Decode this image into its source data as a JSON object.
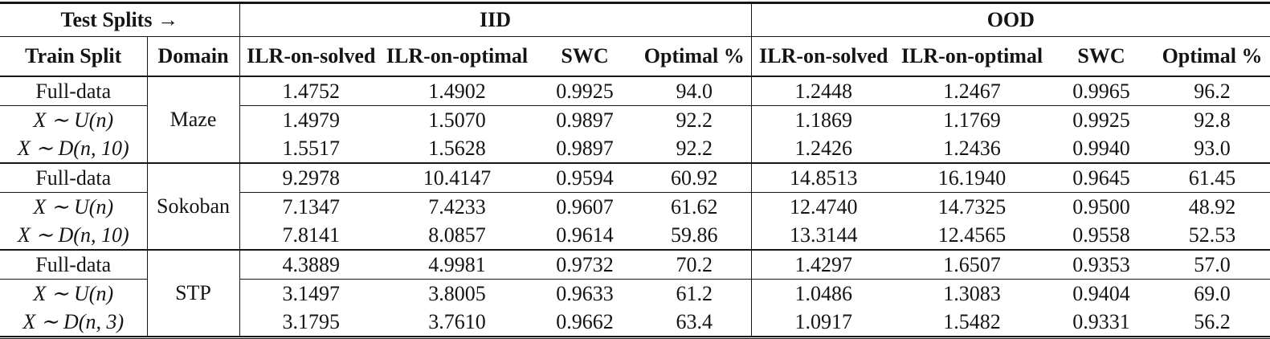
{
  "header": {
    "test_splits": "Test Splits →",
    "iid": "IID",
    "ood": "OOD",
    "train_split": "Train Split",
    "domain": "Domain",
    "metrics": [
      "ILR-on-solved",
      "ILR-on-optimal",
      "SWC",
      "Optimal %"
    ]
  },
  "blocks": [
    {
      "domain": "Maze",
      "rows": [
        {
          "train_split": "Full-data",
          "math": false,
          "iid": [
            "1.4752",
            "1.4902",
            "0.9925",
            "94.0"
          ],
          "iid_bold": [
            false,
            false,
            false,
            false
          ],
          "ood": [
            "1.2448",
            "1.2467",
            "0.9965",
            "96.2"
          ],
          "ood_bold": [
            false,
            false,
            false,
            false
          ]
        },
        {
          "train_split": "X ∼ U(n)",
          "math": true,
          "iid": [
            "1.4979",
            "1.5070",
            "0.9897",
            "92.2"
          ],
          "iid_bold": [
            false,
            false,
            true,
            true
          ],
          "ood": [
            "1.1869",
            "1.1769",
            "0.9925",
            "92.8"
          ],
          "ood_bold": [
            false,
            false,
            false,
            false
          ]
        },
        {
          "train_split": "X ∼ D(n, 10)",
          "math": true,
          "iid": [
            "1.5517",
            "1.5628",
            "0.9897",
            "92.2"
          ],
          "iid_bold": [
            true,
            true,
            true,
            true
          ],
          "ood": [
            "1.2426",
            "1.2436",
            "0.9940",
            "93.0"
          ],
          "ood_bold": [
            true,
            true,
            true,
            true
          ]
        }
      ]
    },
    {
      "domain": "Sokoban",
      "rows": [
        {
          "train_split": "Full-data",
          "math": false,
          "iid": [
            "9.2978",
            "10.4147",
            "0.9594",
            "60.92"
          ],
          "iid_bold": [
            false,
            false,
            false,
            false
          ],
          "ood": [
            "14.8513",
            "16.1940",
            "0.9645",
            "61.45"
          ],
          "ood_bold": [
            false,
            false,
            false,
            false
          ]
        },
        {
          "train_split": "X ∼ U(n)",
          "math": true,
          "iid": [
            "7.1347",
            "7.4233",
            "0.9607",
            "61.62"
          ],
          "iid_bold": [
            false,
            false,
            false,
            true
          ],
          "ood": [
            "12.4740",
            "14.7325",
            "0.9500",
            "48.92"
          ],
          "ood_bold": [
            false,
            true,
            false,
            false
          ]
        },
        {
          "train_split": "X ∼ D(n, 10)",
          "math": true,
          "iid": [
            "7.8141",
            "8.0857",
            "0.9614",
            "59.86"
          ],
          "iid_bold": [
            true,
            true,
            true,
            false
          ],
          "ood": [
            "13.3144",
            "12.4565",
            "0.9558",
            "52.53"
          ],
          "ood_bold": [
            true,
            false,
            true,
            true
          ]
        }
      ]
    },
    {
      "domain": "STP",
      "rows": [
        {
          "train_split": "Full-data",
          "math": false,
          "iid": [
            "4.3889",
            "4.9981",
            "0.9732",
            "70.2"
          ],
          "iid_bold": [
            false,
            false,
            false,
            false
          ],
          "ood": [
            "1.4297",
            "1.6507",
            "0.9353",
            "57.0"
          ],
          "ood_bold": [
            false,
            false,
            false,
            false
          ]
        },
        {
          "train_split": "X ∼ U(n)",
          "math": true,
          "iid": [
            "3.1497",
            "3.8005",
            "0.9633",
            "61.2"
          ],
          "iid_bold": [
            false,
            true,
            false,
            false
          ],
          "ood": [
            "1.0486",
            "1.3083",
            "0.9404",
            "69.0"
          ],
          "ood_bold": [
            false,
            false,
            true,
            true
          ]
        },
        {
          "train_split": "X ∼ D(n, 3)",
          "math": true,
          "iid": [
            "3.1795",
            "3.7610",
            "0.9662",
            "63.4"
          ],
          "iid_bold": [
            true,
            false,
            true,
            true
          ],
          "ood": [
            "1.0917",
            "1.5482",
            "0.9331",
            "56.2"
          ],
          "ood_bold": [
            true,
            true,
            false,
            false
          ]
        }
      ]
    }
  ]
}
